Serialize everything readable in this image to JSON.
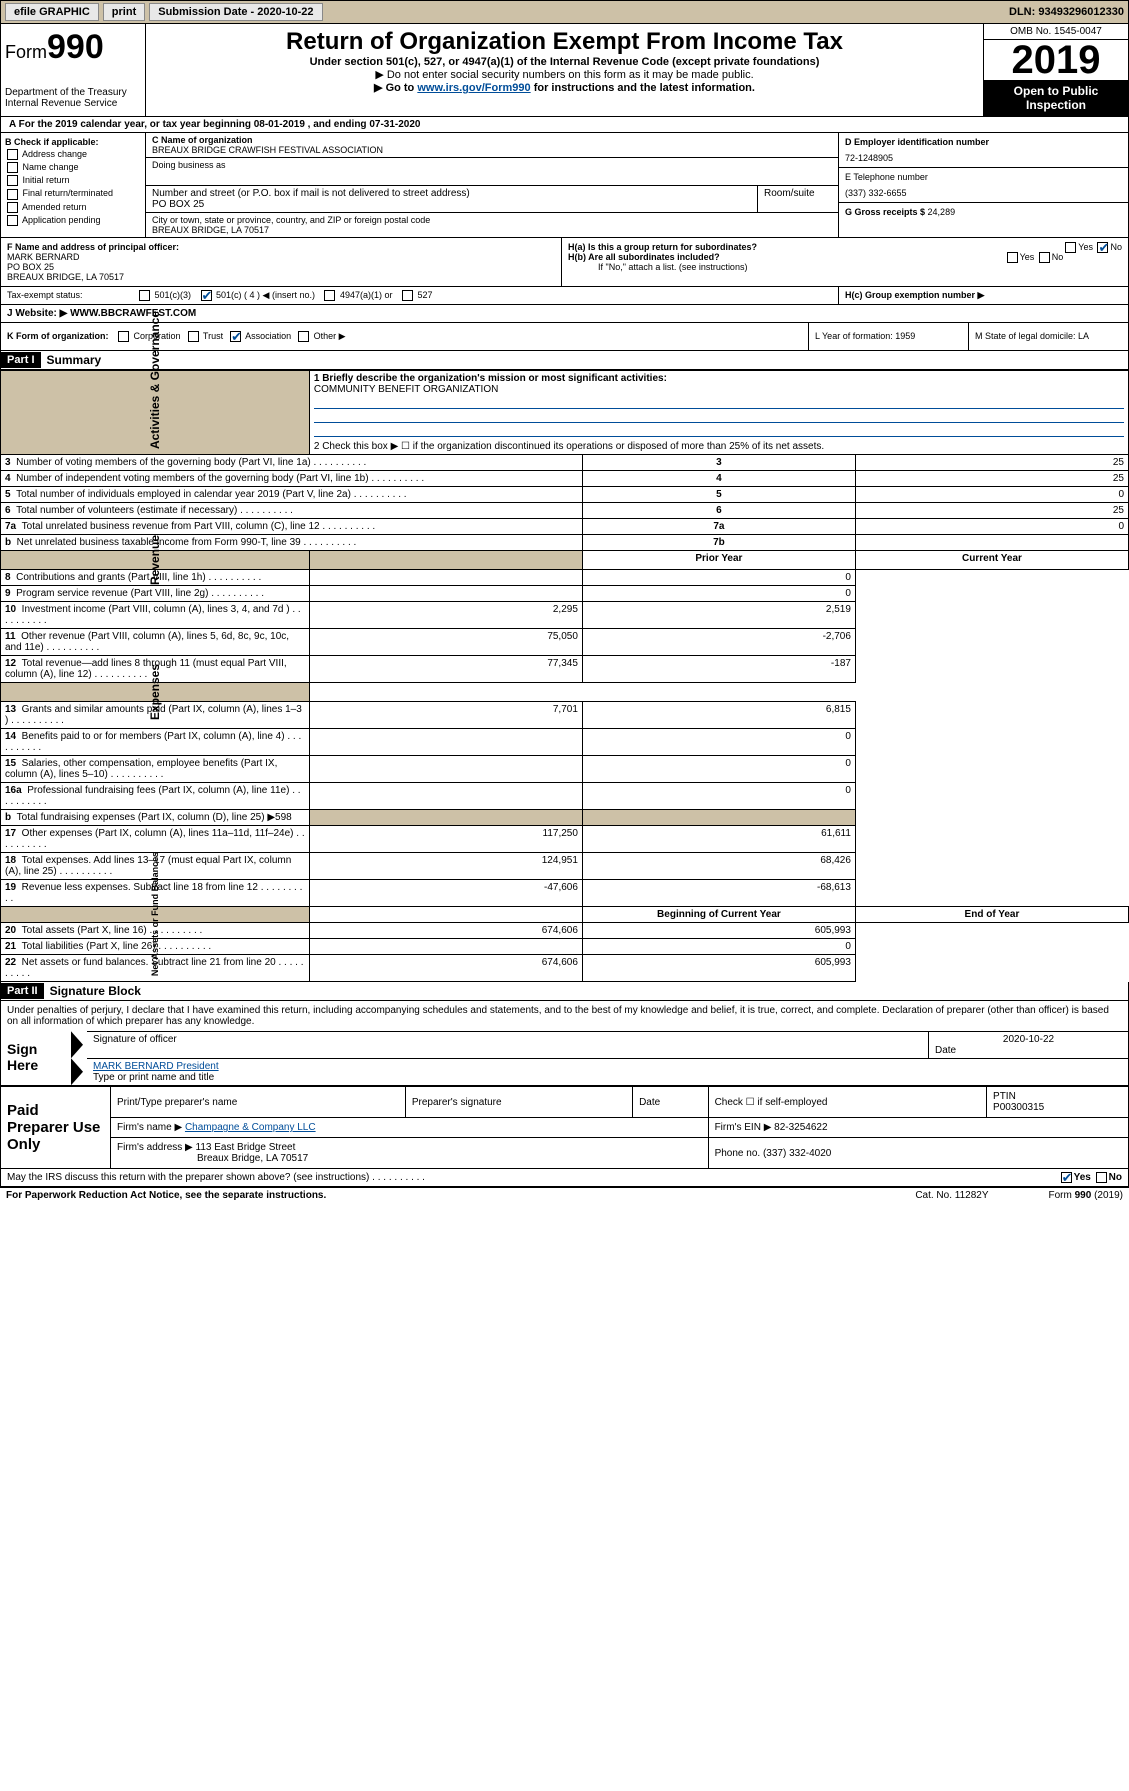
{
  "topbar": {
    "efile": "efile GRAPHIC",
    "print": "print",
    "submission": "Submission Date - 2020-10-22",
    "dln": "DLN: 93493296012330"
  },
  "header": {
    "form": "Form",
    "formnum": "990",
    "dept": "Department of the Treasury\nInternal Revenue Service",
    "title": "Return of Organization Exempt From Income Tax",
    "subtitle": "Under section 501(c), 527, or 4947(a)(1) of the Internal Revenue Code (except private foundations)",
    "instruct1": "▶ Do not enter social security numbers on this form as it may be made public.",
    "instruct2_pre": "▶ Go to ",
    "instruct2_link": "www.irs.gov/Form990",
    "instruct2_post": " for instructions and the latest information.",
    "omb": "OMB No. 1545-0047",
    "year": "2019",
    "open": "Open to Public Inspection"
  },
  "lineA": "A For the 2019 calendar year, or tax year beginning 08-01-2019    , and ending 07-31-2020",
  "secB": {
    "label": "B Check if applicable:",
    "items": [
      "Address change",
      "Name change",
      "Initial return",
      "Final return/terminated",
      "Amended return",
      "Application pending"
    ]
  },
  "secC": {
    "name_lbl": "C Name of organization",
    "name": "BREAUX BRIDGE CRAWFISH FESTIVAL ASSOCIATION",
    "dba_lbl": "Doing business as",
    "addr_lbl": "Number and street (or P.O. box if mail is not delivered to street address)",
    "room_lbl": "Room/suite",
    "addr": "PO BOX 25",
    "city_lbl": "City or town, state or province, country, and ZIP or foreign postal code",
    "city": "BREAUX BRIDGE, LA  70517"
  },
  "secD": {
    "ein_lbl": "D Employer identification number",
    "ein": "72-1248905",
    "phone_lbl": "E Telephone number",
    "phone": "(337) 332-6655",
    "gross_lbl": "G Gross receipts $ ",
    "gross": "24,289"
  },
  "secF": {
    "lbl": "F  Name and address of principal officer:",
    "name": "MARK BERNARD",
    "addr1": "PO BOX 25",
    "addr2": "BREAUX BRIDGE, LA  70517"
  },
  "secH": {
    "a": "H(a)  Is this a group return for subordinates?",
    "b": "H(b)  Are all subordinates included?",
    "b2": "If \"No,\" attach a list. (see instructions)",
    "c": "H(c)  Group exemption number ▶"
  },
  "taxexempt": {
    "lbl": "Tax-exempt status:",
    "opts": [
      "501(c)(3)",
      "501(c) ( 4 ) ◀ (insert no.)",
      "4947(a)(1) or",
      "527"
    ]
  },
  "website": {
    "lbl": "J   Website: ▶",
    "val": "  WWW.BBCRAWFEST.COM"
  },
  "secK": {
    "lbl": "K Form of organization:",
    "opts": [
      "Corporation",
      "Trust",
      "Association",
      "Other ▶"
    ]
  },
  "secL": "L Year of formation: 1959",
  "secM": "M State of legal domicile: LA",
  "part1": {
    "hdr": "Part I",
    "title": "Summary"
  },
  "summary": {
    "line1_lbl": "1  Briefly describe the organization's mission or most significant activities:",
    "line1_val": "COMMUNITY BENEFIT ORGANIZATION",
    "line2": "2   Check this box ▶ ☐  if the organization discontinued its operations or disposed of more than 25% of its net assets.",
    "rows_ag": [
      {
        "n": "3",
        "t": "Number of voting members of the governing body (Part VI, line 1a)",
        "box": "3",
        "v": "25"
      },
      {
        "n": "4",
        "t": "Number of independent voting members of the governing body (Part VI, line 1b)",
        "box": "4",
        "v": "25"
      },
      {
        "n": "5",
        "t": "Total number of individuals employed in calendar year 2019 (Part V, line 2a)",
        "box": "5",
        "v": "0"
      },
      {
        "n": "6",
        "t": "Total number of volunteers (estimate if necessary)",
        "box": "6",
        "v": "25"
      },
      {
        "n": "7a",
        "t": "Total unrelated business revenue from Part VIII, column (C), line 12",
        "box": "7a",
        "v": "0"
      },
      {
        "n": "b",
        "t": "Net unrelated business taxable income from Form 990-T, line 39",
        "box": "7b",
        "v": ""
      }
    ],
    "hdr_prior": "Prior Year",
    "hdr_curr": "Current Year",
    "rows_rev": [
      {
        "n": "8",
        "t": "Contributions and grants (Part VIII, line 1h)",
        "p": "",
        "c": "0"
      },
      {
        "n": "9",
        "t": "Program service revenue (Part VIII, line 2g)",
        "p": "",
        "c": "0"
      },
      {
        "n": "10",
        "t": "Investment income (Part VIII, column (A), lines 3, 4, and 7d )",
        "p": "2,295",
        "c": "2,519"
      },
      {
        "n": "11",
        "t": "Other revenue (Part VIII, column (A), lines 5, 6d, 8c, 9c, 10c, and 11e)",
        "p": "75,050",
        "c": "-2,706"
      },
      {
        "n": "12",
        "t": "Total revenue—add lines 8 through 11 (must equal Part VIII, column (A), line 12)",
        "p": "77,345",
        "c": "-187"
      }
    ],
    "rows_exp": [
      {
        "n": "13",
        "t": "Grants and similar amounts paid (Part IX, column (A), lines 1–3 )",
        "p": "7,701",
        "c": "6,815"
      },
      {
        "n": "14",
        "t": "Benefits paid to or for members (Part IX, column (A), line 4)",
        "p": "",
        "c": "0"
      },
      {
        "n": "15",
        "t": "Salaries, other compensation, employee benefits (Part IX, column (A), lines 5–10)",
        "p": "",
        "c": "0"
      },
      {
        "n": "16a",
        "t": "Professional fundraising fees (Part IX, column (A), line 11e)",
        "p": "",
        "c": "0"
      },
      {
        "n": "b",
        "t": "Total fundraising expenses (Part IX, column (D), line 25) ▶598",
        "p": "—",
        "c": "—"
      },
      {
        "n": "17",
        "t": "Other expenses (Part IX, column (A), lines 11a–11d, 11f–24e)",
        "p": "117,250",
        "c": "61,611"
      },
      {
        "n": "18",
        "t": "Total expenses. Add lines 13–17 (must equal Part IX, column (A), line 25)",
        "p": "124,951",
        "c": "68,426"
      },
      {
        "n": "19",
        "t": "Revenue less expenses. Subtract line 18 from line 12",
        "p": "-47,606",
        "c": "-68,613"
      }
    ],
    "hdr_begin": "Beginning of Current Year",
    "hdr_end": "End of Year",
    "rows_net": [
      {
        "n": "20",
        "t": "Total assets (Part X, line 16)",
        "p": "674,606",
        "c": "605,993"
      },
      {
        "n": "21",
        "t": "Total liabilities (Part X, line 26)",
        "p": "",
        "c": "0"
      },
      {
        "n": "22",
        "t": "Net assets or fund balances. Subtract line 21 from line 20",
        "p": "674,606",
        "c": "605,993"
      }
    ],
    "sidebars": {
      "ag": "Activities & Governance",
      "rev": "Revenue",
      "exp": "Expenses",
      "net": "Net Assets or\nFund Balances"
    }
  },
  "part2": {
    "hdr": "Part II",
    "title": "Signature Block"
  },
  "sig": {
    "text": "Under penalties of perjury, I declare that I have examined this return, including accompanying schedules and statements, and to the best of my knowledge and belief, it is true, correct, and complete. Declaration of preparer (other than officer) is based on all information of which preparer has any knowledge.",
    "sign_here": "Sign Here",
    "sig_officer": "Signature of officer",
    "date": "2020-10-22",
    "date_lbl": "Date",
    "type_name": "MARK BERNARD President",
    "type_lbl": "Type or print name and title"
  },
  "paid": {
    "label": "Paid Preparer Use Only",
    "c1": "Print/Type preparer's name",
    "c2": "Preparer's signature",
    "c3": "Date",
    "c4_a": "Check ☐ if self-employed",
    "c5_lbl": "PTIN",
    "c5": "P00300315",
    "firm_lbl": "Firm's name    ▶",
    "firm": "Champagne & Company LLC",
    "firm_ein_lbl": "Firm's EIN ▶",
    "firm_ein": "82-3254622",
    "firm_addr_lbl": "Firm's address ▶",
    "firm_addr1": "113 East Bridge Street",
    "firm_addr2": "Breaux Bridge, LA  70517",
    "phone_lbl": "Phone no.",
    "phone": "(337) 332-4020"
  },
  "discuss": "May the IRS discuss this return with the preparer shown above? (see instructions)",
  "footer": {
    "l": "For Paperwork Reduction Act Notice, see the separate instructions.",
    "m": "Cat. No. 11282Y",
    "r": "Form 990 (2019)"
  }
}
